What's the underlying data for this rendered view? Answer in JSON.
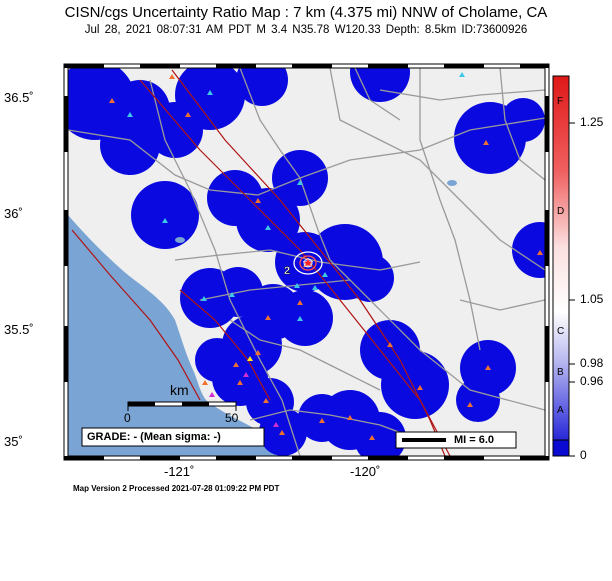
{
  "header": {
    "title": "CISN/cgs Uncertainty Ratio Map : 7 km (4.375 mi) NNW of Cholame, CA",
    "subtitle": "Jul 28, 2021 08:07:31 AM PDT   M 3.4   N35.78 W120.33   Depth: 8.5km   ID:73600926"
  },
  "axes": {
    "lat_labels": [
      "36.5˚",
      "36˚",
      "35.5˚",
      "35˚"
    ],
    "lon_labels": [
      "-121˚",
      "-120˚"
    ]
  },
  "colorbar": {
    "values": [
      "1.25",
      "1.05",
      "0.98",
      "0.96",
      "0"
    ],
    "grades": [
      "F",
      "D",
      "C",
      "B",
      "A"
    ],
    "colors": {
      "high": "#e02020",
      "mid": "#ffffff",
      "low": "#1010d0"
    }
  },
  "scale_bar": {
    "unit": "km",
    "start": "0",
    "end": "50"
  },
  "grade_box": "GRADE: - (Mean sigma: -)",
  "mi_legend": "MI = 6.0",
  "footer": "Map Version 2 Processed 2021-07-28 01:09:22 PM PDT",
  "epicenter_label": "2",
  "colors": {
    "ocean": "#7aa4d4",
    "land": "#efefef",
    "uncertainty_blob": "#0a0ae0",
    "fault": "#b01414",
    "road": "#9a9a9a",
    "station_triangle": "#3ec8e8",
    "intensity_triangle": "#f07030"
  }
}
